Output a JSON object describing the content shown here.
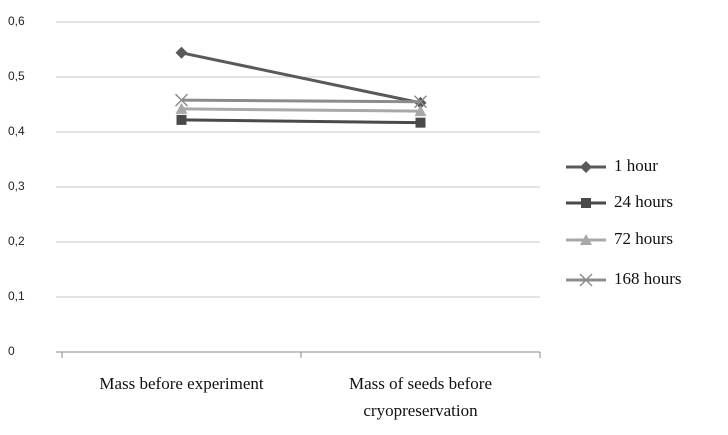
{
  "chart_data": {
    "type": "line",
    "categories": [
      "Mass before experiment",
      "Mass of seeds before cryopreservation"
    ],
    "series": [
      {
        "name": "1 hour",
        "color": "#595959",
        "marker": "diamond",
        "values": [
          0.544,
          0.453
        ]
      },
      {
        "name": "24 hours",
        "color": "#4a4a4a",
        "marker": "square",
        "values": [
          0.422,
          0.417
        ]
      },
      {
        "name": "72 hours",
        "color": "#a8a8a8",
        "marker": "triangle",
        "values": [
          0.442,
          0.438
        ]
      },
      {
        "name": "168 hours",
        "color": "#8c8c8c",
        "marker": "x",
        "values": [
          0.458,
          0.455
        ]
      }
    ],
    "ylim": [
      0,
      0.6
    ],
    "yticks": [
      0,
      {
        "value": 0.1,
        "label": "0,1"
      },
      {
        "value": 0.2,
        "label": "0,2"
      },
      {
        "value": 0.3,
        "label": "0,3"
      },
      {
        "value": 0.4,
        "label": "0,4"
      },
      {
        "value": 0.5,
        "label": "0,5"
      },
      {
        "value": 0.6,
        "label": "0,6"
      }
    ],
    "grid": true,
    "legend": "right"
  }
}
